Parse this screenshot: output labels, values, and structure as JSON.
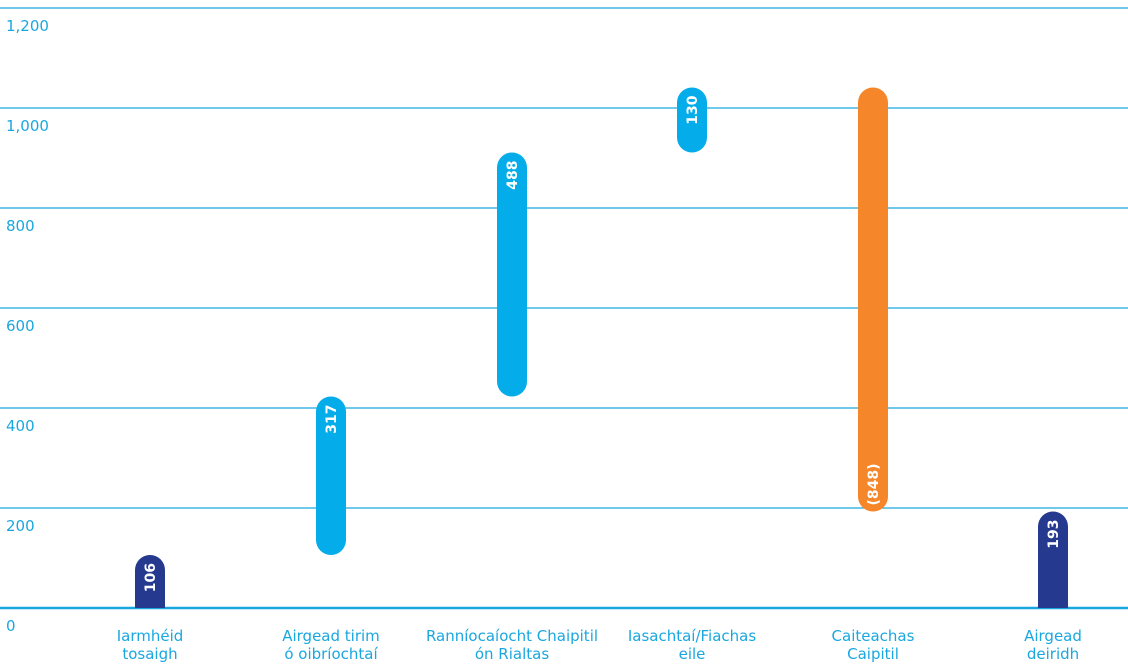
{
  "chart_data": {
    "type": "bar",
    "subtype": "waterfall",
    "categories": [
      [
        "Iarmhéid",
        "tosaigh"
      ],
      [
        "Airgead tirim",
        "ó oibríochtaí"
      ],
      [
        "Ranníocaíocht Chaipitil",
        "ón Rialtas"
      ],
      [
        "Iasachtaí/Fiachas",
        "eile"
      ],
      [
        "Caiteachas",
        "Caipitil"
      ],
      [
        "Airgead",
        "deiridh"
      ]
    ],
    "values": [
      106,
      317,
      488,
      130,
      -848,
      193
    ],
    "data_labels": [
      "106",
      "317",
      "488",
      "130",
      "(848)",
      "193"
    ],
    "bar_kinds": [
      "total",
      "increase",
      "increase",
      "increase",
      "decrease",
      "total"
    ],
    "ylim": [
      0,
      1200
    ],
    "yticks": [
      0,
      200,
      400,
      600,
      800,
      1000,
      1200
    ],
    "ytick_labels": [
      "0",
      "200",
      "400",
      "600",
      "800",
      "1,000",
      "1,200"
    ],
    "grid": true,
    "legend": "none",
    "title": "",
    "xlabel": "",
    "ylabel": "",
    "colors": {
      "total": "#253a8f",
      "increase": "#04ade9",
      "decrease": "#f6862a",
      "grid": "#1aa7df",
      "text": "#1aa7df",
      "label": "#ffffff"
    }
  }
}
